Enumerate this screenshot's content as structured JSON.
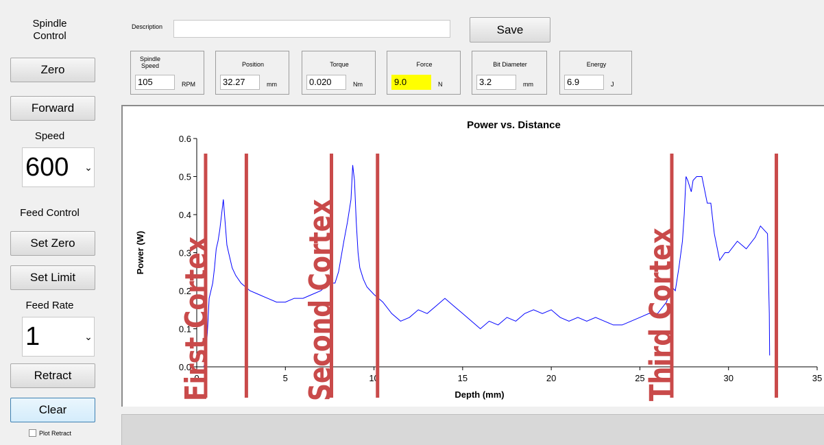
{
  "sidebar": {
    "spindle_control_label": "Spindle\nControl",
    "zero_button": "Zero",
    "forward_button": "Forward",
    "speed_label": "Speed",
    "speed_value": "600",
    "feed_control_label": "Feed Control",
    "set_zero_button": "Set Zero",
    "set_limit_button": "Set Limit",
    "feed_rate_label": "Feed Rate",
    "feed_rate_value": "1",
    "retract_button": "Retract",
    "clear_button": "Clear",
    "plot_retract_label": "Plot Retract",
    "plot_retract_checked": false
  },
  "header": {
    "description_label": "Description",
    "description_value": "",
    "save_button": "Save"
  },
  "readouts": [
    {
      "title": "Spindle\nSpeed",
      "value": "105",
      "unit": "RPM"
    },
    {
      "title": "Position",
      "value": "32.27",
      "unit": "mm"
    },
    {
      "title": "Torque",
      "value": "0.020",
      "unit": "Nm"
    },
    {
      "title": "Force",
      "value": "9.0",
      "unit": "N",
      "highlight": "#ffff00"
    },
    {
      "title": "Bit Diameter",
      "value": "3.2",
      "unit": "mm"
    },
    {
      "title": "Energy",
      "value": "6.9",
      "unit": "J"
    }
  ],
  "chart_data": {
    "type": "line",
    "title": "Power vs. Distance",
    "xlabel": "Depth (mm)",
    "ylabel": "Power (W)",
    "xlim": [
      0,
      35
    ],
    "ylim": [
      0,
      0.6
    ],
    "xticks": [
      "0",
      "5",
      "10",
      "15",
      "20",
      "25",
      "30",
      "35"
    ],
    "yticks": [
      "0.0",
      "0.1",
      "0.2",
      "0.3",
      "0.4",
      "0.5",
      "0.6"
    ],
    "line_color": "#0000ff",
    "grid": false,
    "series": [
      {
        "x": [
          0.4,
          0.5,
          0.6,
          0.7,
          0.8,
          0.9,
          1.0,
          1.1,
          1.2,
          1.3,
          1.4,
          1.5,
          1.6,
          1.7,
          1.8,
          1.9,
          2.0,
          2.2,
          2.5,
          3.0,
          3.5,
          4.0,
          4.5,
          5.0,
          5.5,
          6.0,
          6.5,
          7.0,
          7.5,
          7.8,
          8.0,
          8.3,
          8.5,
          8.7,
          8.8,
          8.9,
          9.0,
          9.1,
          9.2,
          9.4,
          9.6,
          9.8,
          10.0,
          10.5,
          11.0,
          11.5,
          12.0,
          12.5,
          13.0,
          13.5,
          14.0,
          14.5,
          15.0,
          15.5,
          16.0,
          16.5,
          17.0,
          17.5,
          18.0,
          18.5,
          19.0,
          19.5,
          20.0,
          20.5,
          21.0,
          21.5,
          22.0,
          22.5,
          23.0,
          23.5,
          24.0,
          24.5,
          25.0,
          25.5,
          26.0,
          26.5,
          26.8,
          27.0,
          27.2,
          27.4,
          27.5,
          27.6,
          27.7,
          27.9,
          28.0,
          28.2,
          28.5,
          28.8,
          29.0,
          29.2,
          29.5,
          29.8,
          30.0,
          30.5,
          31.0,
          31.5,
          31.8,
          32.0,
          32.2,
          32.3,
          32.32
        ],
        "y": [
          0.0,
          0.02,
          0.09,
          0.18,
          0.2,
          0.22,
          0.26,
          0.31,
          0.33,
          0.36,
          0.4,
          0.44,
          0.38,
          0.32,
          0.3,
          0.28,
          0.26,
          0.24,
          0.22,
          0.2,
          0.19,
          0.18,
          0.17,
          0.17,
          0.18,
          0.18,
          0.19,
          0.2,
          0.22,
          0.22,
          0.25,
          0.33,
          0.38,
          0.44,
          0.53,
          0.49,
          0.38,
          0.3,
          0.26,
          0.23,
          0.21,
          0.2,
          0.19,
          0.17,
          0.14,
          0.12,
          0.13,
          0.15,
          0.14,
          0.16,
          0.18,
          0.16,
          0.14,
          0.12,
          0.1,
          0.12,
          0.11,
          0.13,
          0.12,
          0.14,
          0.15,
          0.14,
          0.15,
          0.13,
          0.12,
          0.13,
          0.12,
          0.13,
          0.12,
          0.11,
          0.11,
          0.12,
          0.13,
          0.14,
          0.14,
          0.17,
          0.21,
          0.2,
          0.26,
          0.33,
          0.4,
          0.5,
          0.49,
          0.46,
          0.49,
          0.5,
          0.5,
          0.43,
          0.43,
          0.35,
          0.28,
          0.3,
          0.3,
          0.33,
          0.31,
          0.34,
          0.37,
          0.36,
          0.35,
          0.14,
          0.03
        ]
      }
    ]
  },
  "annotations": {
    "color": "#c94a4a",
    "line_x": [
      0.5,
      2.8,
      7.6,
      10.2,
      26.8,
      32.7
    ],
    "labels": [
      {
        "text": "First Cortex",
        "x": 0.0
      },
      {
        "text": "Second Cortex",
        "x": 7.0
      },
      {
        "text": "Third Cortex",
        "x": 26.2
      }
    ]
  }
}
